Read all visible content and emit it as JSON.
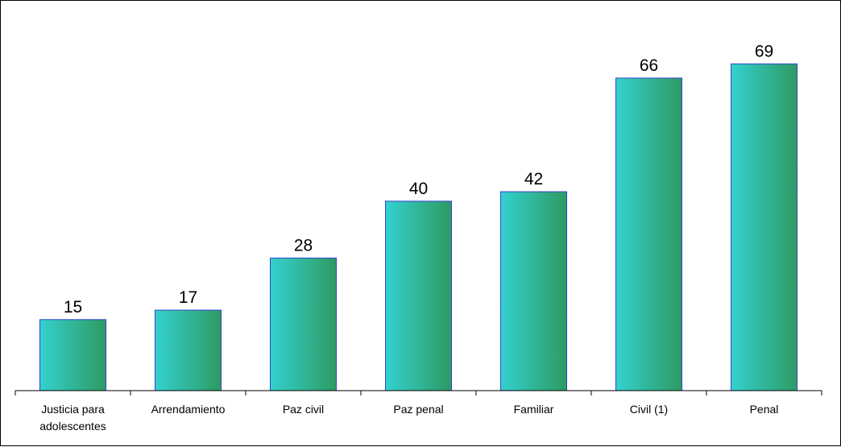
{
  "chart_data": {
    "type": "bar",
    "categories": [
      "Justicia para adolescentes",
      "Arrendamiento",
      "Paz civil",
      "Paz penal",
      "Familiar",
      "Civil (1)",
      "Penal"
    ],
    "category_lines": [
      [
        "Justicia para",
        "adolescentes"
      ],
      [
        "Arrendamiento"
      ],
      [
        "Paz civil"
      ],
      [
        "Paz penal"
      ],
      [
        "Familiar"
      ],
      [
        "Civil (1)"
      ],
      [
        "Penal"
      ]
    ],
    "values": [
      15,
      17,
      28,
      40,
      42,
      66,
      69
    ],
    "title": "",
    "xlabel": "",
    "ylabel": "",
    "ylim": [
      0,
      80
    ],
    "grid": false,
    "legend": "none",
    "colors": {
      "bar_fill_start": "#33d1cf",
      "bar_fill_end": "#2e9a62",
      "bar_stroke": "#3344cc",
      "axis": "#000000"
    }
  }
}
